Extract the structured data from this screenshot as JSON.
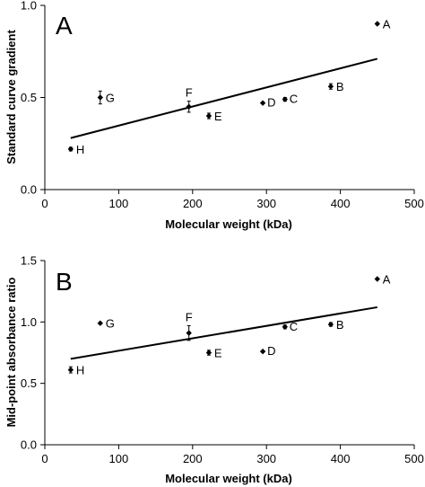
{
  "chart_data": [
    {
      "type": "scatter",
      "panel": "A",
      "xlabel": "Molecular weight (kDa)",
      "ylabel": "Standard curve gradient",
      "xlim": [
        0,
        500
      ],
      "ylim": [
        0,
        1.0
      ],
      "xticks": [
        "0",
        "100",
        "200",
        "300",
        "400",
        "500"
      ],
      "yticks": [
        "0.0",
        "0.5",
        "1.0"
      ],
      "ytick_values": [
        0,
        0.5,
        1.0
      ],
      "grid": false,
      "points": [
        {
          "label": "A",
          "x": 450,
          "y": 0.9,
          "err": 0
        },
        {
          "label": "B",
          "x": 387,
          "y": 0.56,
          "err": 0.015
        },
        {
          "label": "C",
          "x": 325,
          "y": 0.49,
          "err": 0.01
        },
        {
          "label": "D",
          "x": 295,
          "y": 0.47,
          "err": 0
        },
        {
          "label": "E",
          "x": 222,
          "y": 0.4,
          "err": 0.015
        },
        {
          "label": "F",
          "x": 195,
          "y": 0.45,
          "err": 0.03
        },
        {
          "label": "G",
          "x": 75,
          "y": 0.5,
          "err": 0.035
        },
        {
          "label": "H",
          "x": 35,
          "y": 0.22,
          "err": 0.01
        }
      ],
      "trendline": {
        "x": [
          35,
          450
        ],
        "y": [
          0.28,
          0.71
        ]
      }
    },
    {
      "type": "scatter",
      "panel": "B",
      "xlabel": "Molecular weight (kDa)",
      "ylabel": "Mid-point absorbance ratio",
      "xlim": [
        0,
        500
      ],
      "ylim": [
        0,
        1.5
      ],
      "xticks": [
        "0",
        "100",
        "200",
        "300",
        "400",
        "500"
      ],
      "yticks": [
        "0.0",
        "0.5",
        "1.0",
        "1.5"
      ],
      "ytick_values": [
        0,
        0.5,
        1.0,
        1.5
      ],
      "grid": false,
      "points": [
        {
          "label": "A",
          "x": 450,
          "y": 1.35,
          "err": 0
        },
        {
          "label": "B",
          "x": 387,
          "y": 0.98,
          "err": 0.015
        },
        {
          "label": "C",
          "x": 325,
          "y": 0.96,
          "err": 0.015
        },
        {
          "label": "D",
          "x": 295,
          "y": 0.76,
          "err": 0
        },
        {
          "label": "E",
          "x": 222,
          "y": 0.75,
          "err": 0.02
        },
        {
          "label": "F",
          "x": 195,
          "y": 0.91,
          "err": 0.06
        },
        {
          "label": "G",
          "x": 75,
          "y": 0.99,
          "err": 0
        },
        {
          "label": "H",
          "x": 35,
          "y": 0.61,
          "err": 0.025
        }
      ],
      "trendline": {
        "x": [
          35,
          450
        ],
        "y": [
          0.7,
          1.12
        ]
      }
    }
  ]
}
